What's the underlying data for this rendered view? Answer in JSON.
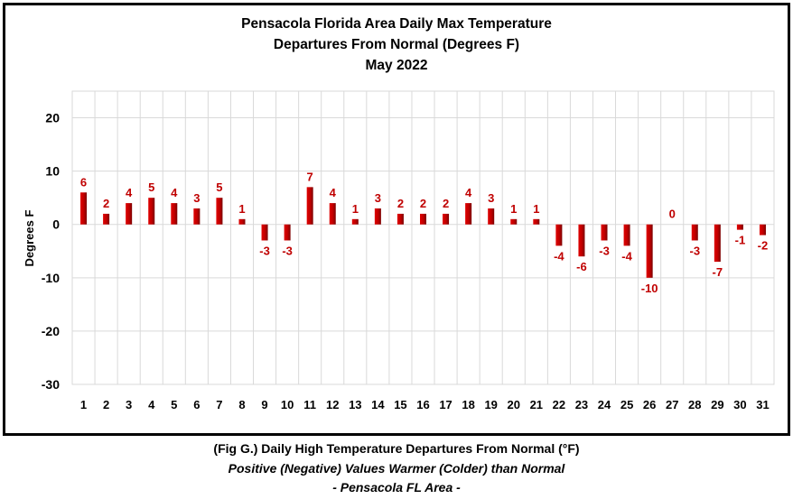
{
  "chart_data": {
    "type": "bar",
    "title": [
      "Pensacola Florida Area Daily Max Temperature",
      "Departures From Normal (Degrees F)",
      "May 2022"
    ],
    "xlabel": "",
    "ylabel": "Degrees F",
    "ylim": [
      -30,
      25
    ],
    "yticks": [
      20,
      10,
      0,
      -10,
      -20,
      -30
    ],
    "grid": true,
    "categories": [
      "1",
      "2",
      "3",
      "4",
      "5",
      "6",
      "7",
      "8",
      "9",
      "10",
      "11",
      "12",
      "13",
      "14",
      "15",
      "16",
      "17",
      "18",
      "19",
      "20",
      "21",
      "22",
      "23",
      "24",
      "25",
      "26",
      "27",
      "28",
      "29",
      "30",
      "31"
    ],
    "values": [
      6,
      2,
      4,
      5,
      4,
      3,
      5,
      1,
      -3,
      -3,
      7,
      4,
      1,
      3,
      2,
      2,
      2,
      4,
      3,
      1,
      1,
      -4,
      -6,
      -3,
      -4,
      -10,
      0,
      -3,
      -7,
      -1,
      -2
    ],
    "data_labels": [
      "6",
      "2",
      "4",
      "5",
      "4",
      "3",
      "5",
      "1",
      "-3",
      "-3",
      "7",
      "4",
      "1",
      "3",
      "2",
      "2",
      "2",
      "4",
      "3",
      "1",
      "1",
      "-4",
      "-6",
      "-3",
      "-4",
      "-10",
      "0",
      "-3",
      "-7",
      "-1",
      "-2"
    ],
    "bar_color": "#c00000",
    "label_color": "#c00000"
  },
  "caption": {
    "line1": "(Fig G.) Daily High Temperature Departures From Normal (°F)",
    "line2": "Positive (Negative) Values Warmer (Colder) than Normal",
    "line3": "- Pensacola FL Area -"
  }
}
